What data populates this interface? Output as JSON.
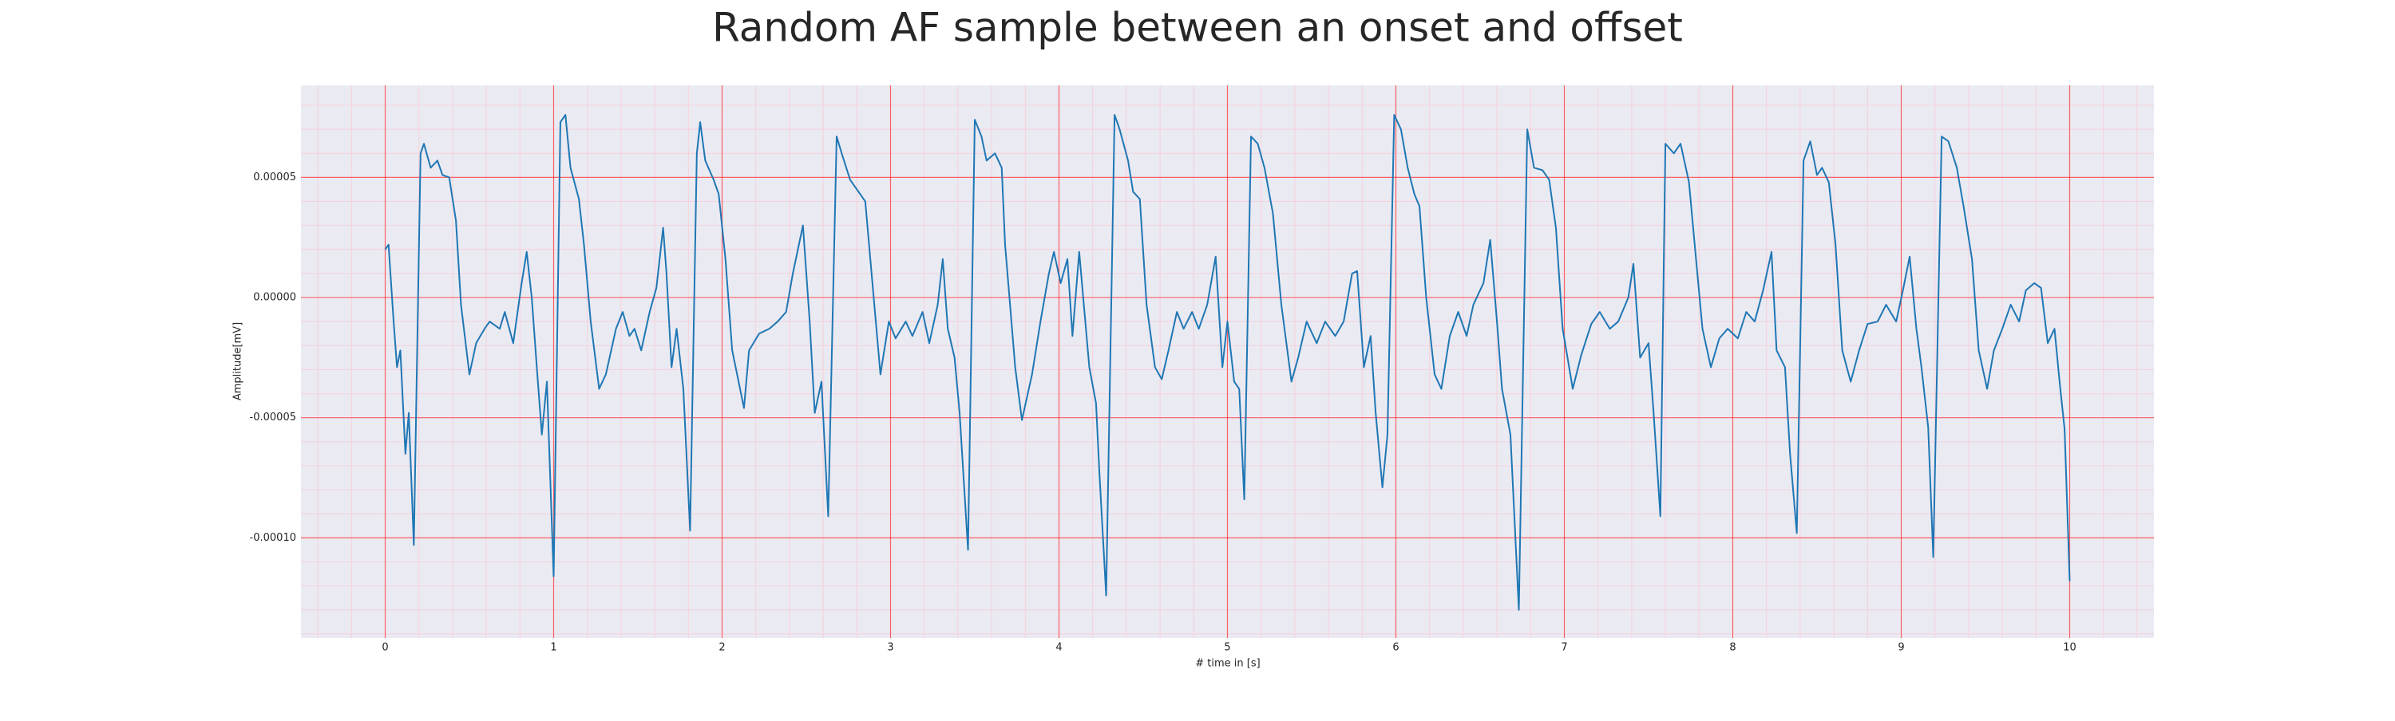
{
  "chart_data": {
    "type": "line",
    "title": "Random AF sample between an onset and offset",
    "xlabel": "# time in [s]",
    "ylabel": "Amplitude[mV]",
    "color": "#1f77b4",
    "grid": true,
    "minor_grid": true,
    "xlim": [
      -0.5,
      10.5
    ],
    "xticks": [
      0,
      1,
      2,
      3,
      4,
      5,
      6,
      7,
      8,
      9,
      10
    ],
    "ylim": [
      -0.0001417,
      8.83e-05
    ],
    "yticks": [
      {
        "value": -0.0001,
        "label": "-0.00010"
      },
      {
        "value": -5e-05,
        "label": "-0.00005"
      },
      {
        "value": 0,
        "label": "0.00000"
      },
      {
        "value": 5e-05,
        "label": "0.00005"
      }
    ],
    "x": [
      0,
      0.02,
      0.05,
      0.07,
      0.09,
      0.12,
      0.14,
      0.17,
      0.21,
      0.23,
      0.27,
      0.31,
      0.34,
      0.38,
      0.42,
      0.45,
      0.5,
      0.54,
      0.59,
      0.62,
      0.68,
      0.71,
      0.76,
      0.81,
      0.84,
      0.87,
      0.9,
      0.93,
      0.96,
      1.0,
      1.04,
      1.07,
      1.1,
      1.15,
      1.18,
      1.22,
      1.27,
      1.31,
      1.37,
      1.41,
      1.45,
      1.48,
      1.52,
      1.57,
      1.61,
      1.65,
      1.67,
      1.7,
      1.73,
      1.77,
      1.81,
      1.85,
      1.87,
      1.9,
      1.95,
      1.98,
      2.02,
      2.06,
      2.13,
      2.16,
      2.22,
      2.28,
      2.33,
      2.38,
      2.42,
      2.48,
      2.52,
      2.55,
      2.59,
      2.63,
      2.68,
      2.71,
      2.76,
      2.81,
      2.85,
      2.9,
      2.94,
      2.99,
      3.03,
      3.09,
      3.13,
      3.19,
      3.23,
      3.28,
      3.31,
      3.34,
      3.38,
      3.41,
      3.46,
      3.5,
      3.54,
      3.57,
      3.62,
      3.66,
      3.68,
      3.74,
      3.78,
      3.84,
      3.89,
      3.94,
      3.97,
      4.01,
      4.05,
      4.08,
      4.12,
      4.14,
      4.18,
      4.22,
      4.24,
      4.28,
      4.33,
      4.36,
      4.41,
      4.44,
      4.48,
      4.52,
      4.57,
      4.61,
      4.65,
      4.7,
      4.74,
      4.79,
      4.83,
      4.88,
      4.93,
      4.97,
      5.0,
      5.04,
      5.07,
      5.1,
      5.14,
      5.18,
      5.22,
      5.27,
      5.32,
      5.38,
      5.42,
      5.47,
      5.53,
      5.58,
      5.64,
      5.69,
      5.74,
      5.77,
      5.81,
      5.85,
      5.88,
      5.92,
      5.95,
      5.99,
      6.03,
      6.07,
      6.11,
      6.14,
      6.18,
      6.23,
      6.27,
      6.32,
      6.37,
      6.42,
      6.46,
      6.52,
      6.56,
      6.6,
      6.63,
      6.68,
      6.73,
      6.78,
      6.82,
      6.87,
      6.91,
      6.95,
      6.99,
      7.05,
      7.1,
      7.16,
      7.21,
      7.27,
      7.32,
      7.38,
      7.41,
      7.45,
      7.5,
      7.53,
      7.57,
      7.6,
      7.65,
      7.69,
      7.74,
      7.77,
      7.82,
      7.87,
      7.92,
      7.97,
      8.03,
      8.08,
      8.13,
      8.18,
      8.23,
      8.26,
      8.31,
      8.34,
      8.38,
      8.42,
      8.46,
      8.5,
      8.53,
      8.57,
      8.61,
      8.65,
      8.7,
      8.75,
      8.8,
      8.86,
      8.91,
      8.97,
      9.01,
      9.05,
      9.09,
      9.12,
      9.16,
      9.19,
      9.24,
      9.28,
      9.33,
      9.37,
      9.42,
      9.46,
      9.51,
      9.55,
      9.6,
      9.65,
      9.7,
      9.74,
      9.79,
      9.83,
      9.87,
      9.91,
      9.94,
      9.97,
      10.0
    ],
    "values": [
      2e-05,
      2.2e-05,
      -1e-05,
      -2.9e-05,
      -2.2e-05,
      -6.5e-05,
      -4.8e-05,
      -0.000103,
      6e-05,
      6.4e-05,
      5.4e-05,
      5.7e-05,
      5.1e-05,
      5e-05,
      3.2e-05,
      -3e-06,
      -3.2e-05,
      -1.9e-05,
      -1.3e-05,
      -1e-05,
      -1.3e-05,
      -6e-06,
      -1.9e-05,
      6e-06,
      1.9e-05,
      0,
      -2.9e-05,
      -5.7e-05,
      -3.5e-05,
      -0.000116,
      7.3e-05,
      7.6e-05,
      5.4e-05,
      4.1e-05,
      2.2e-05,
      -1e-05,
      -3.8e-05,
      -3.2e-05,
      -1.3e-05,
      -6e-06,
      -1.6e-05,
      -1.3e-05,
      -2.2e-05,
      -6e-06,
      4e-06,
      2.9e-05,
      1e-05,
      -2.9e-05,
      -1.3e-05,
      -3.8e-05,
      -9.7e-05,
      6e-05,
      7.3e-05,
      5.7e-05,
      4.9e-05,
      4.3e-05,
      1.6e-05,
      -2.2e-05,
      -4.6e-05,
      -2.2e-05,
      -1.5e-05,
      -1.3e-05,
      -1e-05,
      -6e-06,
      1e-05,
      3e-05,
      -1e-05,
      -4.8e-05,
      -3.5e-05,
      -9.1e-05,
      6.7e-05,
      6e-05,
      4.9e-05,
      4.4e-05,
      4e-05,
      0,
      -3.2e-05,
      -1e-05,
      -1.7e-05,
      -1e-05,
      -1.6e-05,
      -6e-06,
      -1.9e-05,
      -3e-06,
      1.6e-05,
      -1.3e-05,
      -2.5e-05,
      -4.8e-05,
      -0.000105,
      7.4e-05,
      6.7e-05,
      5.7e-05,
      6e-05,
      5.4e-05,
      2.2e-05,
      -2.9e-05,
      -5.1e-05,
      -3.2e-05,
      -1e-05,
      1e-05,
      1.9e-05,
      6e-06,
      1.6e-05,
      -1.6e-05,
      1.9e-05,
      3e-06,
      -2.9e-05,
      -4.4e-05,
      -7.3e-05,
      -0.000124,
      7.6e-05,
      7e-05,
      5.7e-05,
      4.4e-05,
      4.1e-05,
      -3e-06,
      -2.9e-05,
      -3.4e-05,
      -2.2e-05,
      -6e-06,
      -1.3e-05,
      -6e-06,
      -1.3e-05,
      -3e-06,
      1.7e-05,
      -2.9e-05,
      -1e-05,
      -3.5e-05,
      -3.8e-05,
      -8.4e-05,
      6.7e-05,
      6.4e-05,
      5.4e-05,
      3.5e-05,
      -3e-06,
      -3.5e-05,
      -2.5e-05,
      -1e-05,
      -1.9e-05,
      -1e-05,
      -1.6e-05,
      -1e-05,
      1e-05,
      1.1e-05,
      -2.9e-05,
      -1.6e-05,
      -4.8e-05,
      -7.9e-05,
      -5.7e-05,
      7.6e-05,
      7e-05,
      5.4e-05,
      4.3e-05,
      3.8e-05,
      0,
      -3.2e-05,
      -3.8e-05,
      -1.6e-05,
      -6e-06,
      -1.6e-05,
      -3e-06,
      6e-06,
      2.4e-05,
      -1e-05,
      -3.8e-05,
      -5.7e-05,
      -0.00013,
      7e-05,
      5.4e-05,
      5.3e-05,
      4.9e-05,
      2.9e-05,
      -1.3e-05,
      -3.8e-05,
      -2.4e-05,
      -1.1e-05,
      -6e-06,
      -1.3e-05,
      -1e-05,
      0,
      1.4e-05,
      -2.5e-05,
      -1.9e-05,
      -4.8e-05,
      -9.1e-05,
      6.4e-05,
      6e-05,
      6.4e-05,
      4.8e-05,
      2.5e-05,
      -1.3e-05,
      -2.9e-05,
      -1.7e-05,
      -1.3e-05,
      -1.7e-05,
      -6e-06,
      -1e-05,
      3e-06,
      1.9e-05,
      -2.2e-05,
      -2.9e-05,
      -6.5e-05,
      -9.8e-05,
      5.7e-05,
      6.5e-05,
      5.1e-05,
      5.4e-05,
      4.8e-05,
      2.2e-05,
      -2.2e-05,
      -3.5e-05,
      -2.2e-05,
      -1.1e-05,
      -1e-05,
      -3e-06,
      -1e-05,
      3e-06,
      1.7e-05,
      -1.3e-05,
      -2.9e-05,
      -5.4e-05,
      -0.000108,
      6.7e-05,
      6.5e-05,
      5.4e-05,
      3.8e-05,
      1.6e-05,
      -2.2e-05,
      -3.8e-05,
      -2.2e-05,
      -1.3e-05,
      -3e-06,
      -1e-05,
      3e-06,
      6e-06,
      4e-06,
      -1.9e-05,
      -1.3e-05,
      -3.5e-05,
      -5.5e-05,
      -0.000118
    ]
  }
}
